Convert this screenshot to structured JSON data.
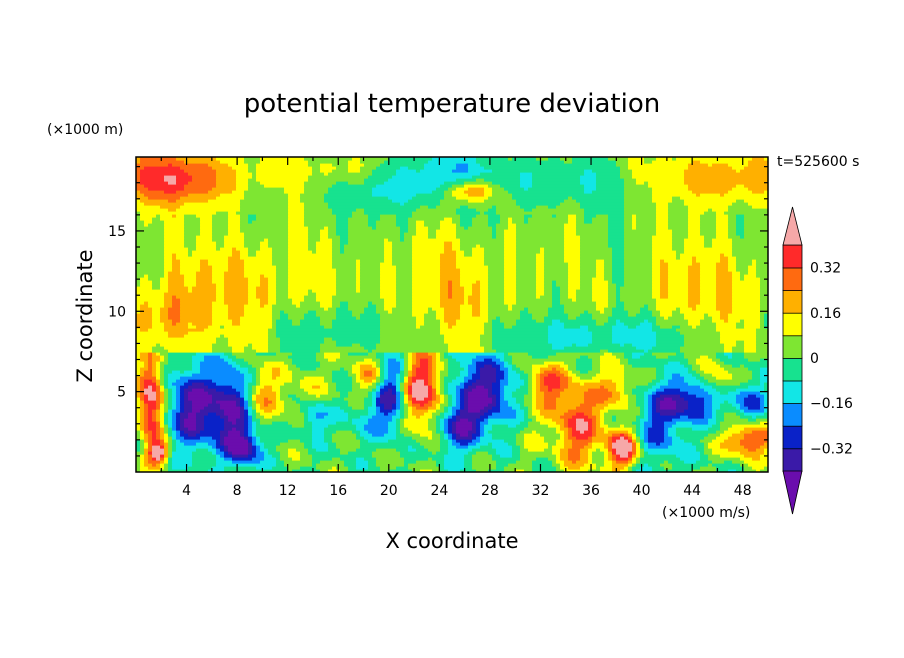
{
  "chart_data": {
    "type": "heatmap",
    "title": "potential temperature deviation",
    "xlabel": "X coordinate",
    "ylabel": "Z coordinate",
    "x_unit_label": "(×1000 m/s)",
    "y_unit_label": "(×1000 m)",
    "time_label": "t=525600 s",
    "xlim": [
      0,
      50
    ],
    "ylim": [
      0,
      19.6
    ],
    "x_ticks": [
      "4",
      "8",
      "12",
      "16",
      "20",
      "24",
      "28",
      "32",
      "36",
      "40",
      "44",
      "48"
    ],
    "x_tick_values": [
      4,
      8,
      12,
      16,
      20,
      24,
      28,
      32,
      36,
      40,
      44,
      48
    ],
    "y_ticks": [
      "5",
      "10",
      "15"
    ],
    "y_tick_values": [
      5,
      10,
      15
    ],
    "colorbar": {
      "labels": [
        "0.32",
        "0.16",
        "0",
        "−0.16",
        "−0.32"
      ],
      "label_values": [
        0.32,
        0.16,
        0,
        -0.16,
        -0.32
      ],
      "levels": [
        -0.4,
        -0.32,
        -0.24,
        -0.16,
        -0.08,
        0,
        0.08,
        0.16,
        0.24,
        0.32,
        0.4
      ],
      "colors": [
        "#6a0dad",
        "#3a1aa8",
        "#0a22c8",
        "#0a8cff",
        "#12e6e6",
        "#17e28f",
        "#7ee632",
        "#ffff00",
        "#ffb000",
        "#ff6a10",
        "#ff2a2a",
        "#f6a8a8"
      ],
      "extend": "both"
    }
  }
}
